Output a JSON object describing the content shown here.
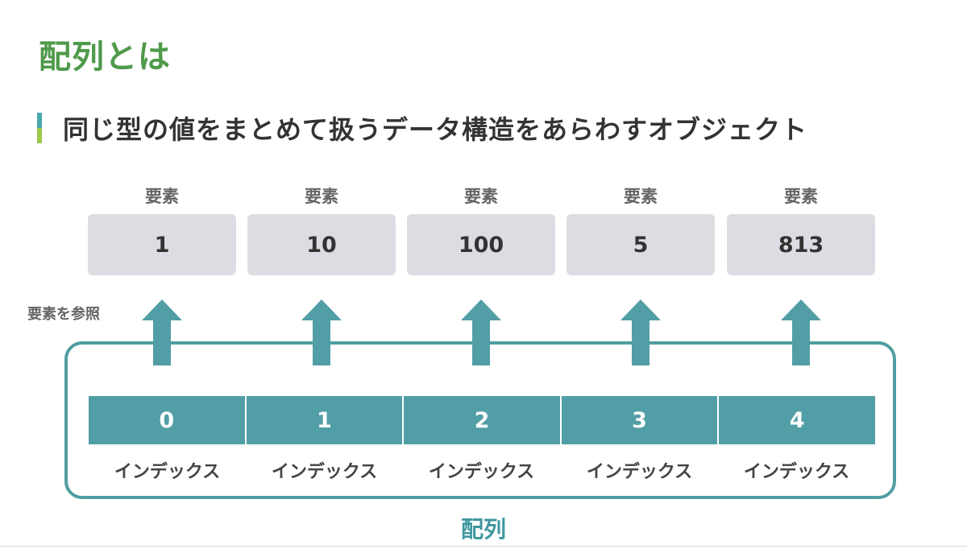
{
  "title": "配列とは",
  "subtitle": "同じ型の値をまとめて扱うデータ構造をあらわすオブジェクト",
  "element_label": "要素",
  "elements": [
    "1",
    "10",
    "100",
    "5",
    "813"
  ],
  "reference_label": "要素を参照",
  "indices": [
    "0",
    "1",
    "2",
    "3",
    "4"
  ],
  "index_label": "インデックス",
  "array_caption": "配列",
  "colors": {
    "title": "#4f9a4a",
    "accent_blue": "#4aa7b0",
    "accent_green": "#9cc94a",
    "teal": "#529ea6",
    "element_box": "#dcdde2"
  }
}
